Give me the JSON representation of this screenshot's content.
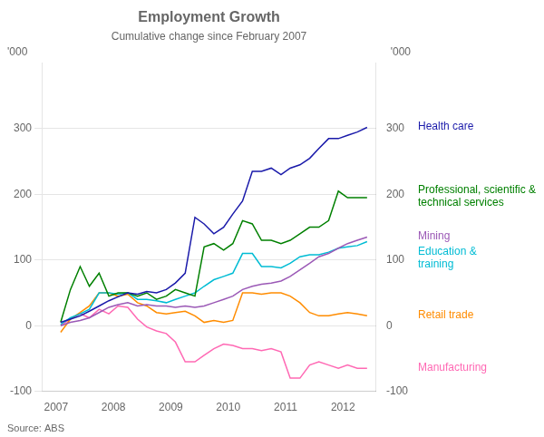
{
  "chart_data": {
    "type": "line",
    "title": "Employment Growth",
    "subtitle": "Cumulative change since February 2007",
    "ylabel": "'000",
    "y2label": "'000",
    "source": "Source: ABS",
    "x": [
      2007.08,
      2007.25,
      2007.42,
      2007.58,
      2007.75,
      2007.92,
      2008.08,
      2008.25,
      2008.42,
      2008.58,
      2008.75,
      2008.92,
      2009.08,
      2009.25,
      2009.42,
      2009.58,
      2009.75,
      2009.92,
      2010.08,
      2010.25,
      2010.42,
      2010.58,
      2010.75,
      2010.92,
      2011.08,
      2011.25,
      2011.42,
      2011.58,
      2011.75,
      2011.92,
      2012.08,
      2012.25,
      2012.42
    ],
    "series": [
      {
        "name": "Health care",
        "color": "#1a1aaa",
        "values": [
          5,
          10,
          15,
          22,
          30,
          38,
          44,
          50,
          48,
          52,
          50,
          55,
          65,
          80,
          165,
          155,
          140,
          150,
          170,
          190,
          235,
          235,
          240,
          230,
          240,
          245,
          255,
          270,
          285,
          285,
          290,
          295,
          302
        ]
      },
      {
        "name": "Professional, scientific &\ntechnical services",
        "color": "#008000",
        "values": [
          5,
          55,
          90,
          60,
          80,
          45,
          50,
          50,
          45,
          50,
          40,
          45,
          55,
          50,
          45,
          120,
          125,
          115,
          125,
          160,
          155,
          130,
          130,
          125,
          130,
          140,
          150,
          150,
          160,
          205,
          195,
          195,
          195
        ]
      },
      {
        "name": "Mining",
        "color": "#9b59b6",
        "values": [
          0,
          5,
          8,
          12,
          20,
          28,
          32,
          35,
          30,
          32,
          30,
          30,
          28,
          30,
          28,
          30,
          35,
          40,
          45,
          55,
          60,
          63,
          65,
          68,
          75,
          85,
          95,
          105,
          110,
          118,
          125,
          130,
          135
        ]
      },
      {
        "name": "Education &\ntraining",
        "color": "#00bcd4",
        "values": [
          2,
          12,
          18,
          25,
          50,
          50,
          48,
          50,
          40,
          40,
          38,
          35,
          40,
          45,
          50,
          60,
          70,
          75,
          80,
          110,
          110,
          90,
          90,
          88,
          95,
          105,
          108,
          108,
          112,
          118,
          120,
          122,
          128
        ]
      },
      {
        "name": "Retail trade",
        "color": "#ff8c00",
        "values": [
          -10,
          10,
          20,
          30,
          50,
          50,
          45,
          48,
          35,
          30,
          20,
          18,
          20,
          22,
          15,
          5,
          8,
          5,
          8,
          50,
          50,
          48,
          50,
          50,
          45,
          35,
          20,
          15,
          15,
          18,
          20,
          18,
          15
        ]
      },
      {
        "name": "Manufacturing",
        "color": "#ff69b4",
        "values": [
          0,
          10,
          18,
          12,
          25,
          18,
          30,
          28,
          10,
          -2,
          -8,
          -12,
          -25,
          -55,
          -55,
          -45,
          -35,
          -28,
          -30,
          -35,
          -35,
          -38,
          -35,
          -40,
          -80,
          -80,
          -60,
          -55,
          -60,
          -65,
          -60,
          -65,
          -65
        ]
      }
    ],
    "xlim": [
      2006.75,
      2012.58
    ],
    "xticks": [
      2007,
      2008,
      2009,
      2010,
      2011,
      2012
    ],
    "ylim": [
      -100,
      400
    ],
    "yticks": [
      -100,
      0,
      100,
      200,
      300
    ],
    "y2lim": [
      -100,
      400
    ],
    "y2ticks": [
      -100,
      0,
      100,
      200,
      300
    ],
    "grid": "y"
  }
}
